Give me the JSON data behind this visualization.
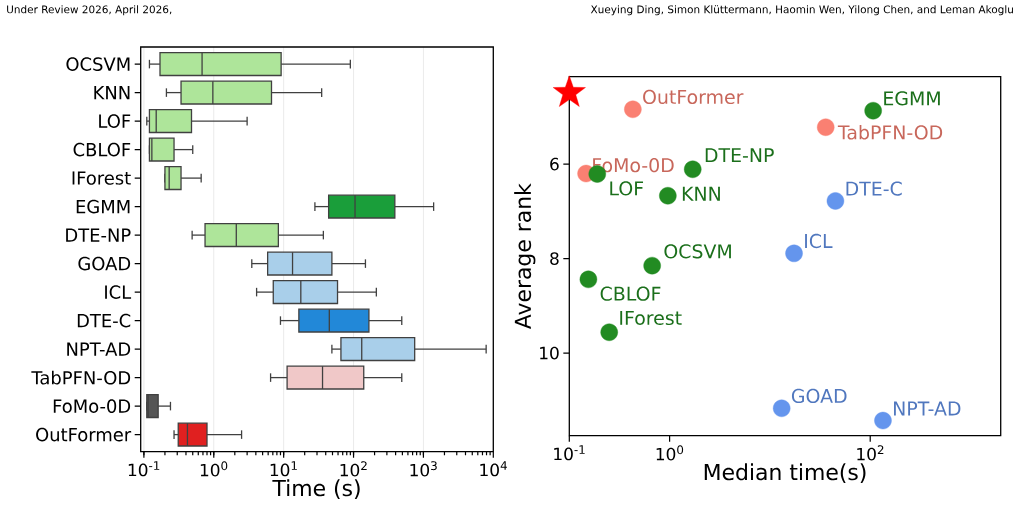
{
  "chart_data": [
    {
      "type": "box",
      "orientation": "horizontal",
      "xlabel": "Time (s)",
      "log": "x",
      "grid": "x",
      "categories": [
        "OCSVM",
        "KNN",
        "LOF",
        "CBLOF",
        "IForest",
        "EGMM",
        "DTE-NP",
        "GOAD",
        "ICL",
        "DTE-C",
        "NPT-AD",
        "TabPFN-OD",
        "FoMo-0D",
        "OutFormer"
      ],
      "colors": [
        "#aee59a",
        "#aee59a",
        "#aee59a",
        "#aee59a",
        "#aee59a",
        "#1a9e3a",
        "#aee59a",
        "#a9cfea",
        "#a9cfea",
        "#2288d8",
        "#a9cfea",
        "#f0c8c8",
        "#555555",
        "#e02020"
      ],
      "boxes": [
        {
          "low": 0.12,
          "q1": 0.17,
          "median": 0.68,
          "q3": 9.2,
          "high": 90
        },
        {
          "low": 0.21,
          "q1": 0.34,
          "median": 0.97,
          "q3": 6.7,
          "high": 35
        },
        {
          "low": 0.11,
          "q1": 0.12,
          "median": 0.15,
          "q3": 0.48,
          "high": 3.0
        },
        {
          "low": 0.12,
          "q1": 0.12,
          "median": 0.13,
          "q3": 0.27,
          "high": 0.5
        },
        {
          "low": 0.2,
          "q1": 0.2,
          "median": 0.23,
          "q3": 0.34,
          "high": 0.66
        },
        {
          "low": 28,
          "q1": 44,
          "median": 105,
          "q3": 390,
          "high": 1400
        },
        {
          "low": 0.49,
          "q1": 0.75,
          "median": 2.1,
          "q3": 8.4,
          "high": 37
        },
        {
          "low": 3.5,
          "q1": 5.9,
          "median": 13.4,
          "q3": 49,
          "high": 148
        },
        {
          "low": 4.1,
          "q1": 7.1,
          "median": 17.6,
          "q3": 59,
          "high": 212
        },
        {
          "low": 9.0,
          "q1": 16.5,
          "median": 45,
          "q3": 166,
          "high": 490
        },
        {
          "low": 49,
          "q1": 66,
          "median": 131,
          "q3": 750,
          "high": 7900
        },
        {
          "low": 6.5,
          "q1": 11.2,
          "median": 36,
          "q3": 140,
          "high": 490
        },
        {
          "low": 0.11,
          "q1": 0.11,
          "median": 0.115,
          "q3": 0.16,
          "high": 0.24
        },
        {
          "low": 0.27,
          "q1": 0.31,
          "median": 0.42,
          "q3": 0.8,
          "high": 2.5
        }
      ],
      "xlim": [
        0.09,
        10000
      ],
      "xticks": [
        {
          "value": 0.1,
          "label": "10$^{-1}$"
        },
        {
          "value": 1,
          "label": "10$^{0}$"
        },
        {
          "value": 10,
          "label": "10$^{1}$"
        },
        {
          "value": 100,
          "label": "10$^{2}$"
        },
        {
          "value": 1000,
          "label": "10$^{3}$"
        },
        {
          "value": 10000,
          "label": "10$^{4}$"
        }
      ],
      "annotations": [
        "Under Review 2026, April 2026,"
      ]
    },
    {
      "type": "scatter",
      "xlabel": "Median time(s)",
      "ylabel": "Average rank",
      "log": "x",
      "xlim": [
        0.1,
        2000
      ],
      "ylim": [
        11.75,
        4.15
      ],
      "xticks": [
        {
          "value": 0.1,
          "label": "10$^{-1}$"
        },
        {
          "value": 1,
          "label": "10$^{0}$"
        },
        {
          "value": 100,
          "label": "10$^{2}$"
        }
      ],
      "yticks": [
        6,
        8,
        10
      ],
      "series": [
        {
          "color": "#fa8072",
          "marker": "circle",
          "x": [
            0.43,
            36,
            0.147
          ],
          "values": [
            4.84,
            5.22,
            6.2
          ],
          "value_labels": [
            "OutFormer",
            "TabPFN-OD",
            "FoMo-0D"
          ]
        },
        {
          "color": "#6495ed",
          "marker": "circle",
          "x": [
            13.1,
            17.4,
            45,
            134
          ],
          "values": [
            11.17,
            7.89,
            6.78,
            11.43
          ],
          "value_labels": [
            "GOAD",
            "ICL",
            "DTE-C",
            "NPT-AD"
          ]
        },
        {
          "color": "#228b22",
          "marker": "circle",
          "x": [
            0.67,
            0.96,
            0.19,
            0.155,
            0.25,
            107,
            1.7
          ],
          "values": [
            8.15,
            6.67,
            6.21,
            8.44,
            9.56,
            4.87,
            6.11
          ],
          "value_labels": [
            "OCSVM",
            "KNN",
            "LOF",
            "CBLOF",
            "IForest",
            "EGMM",
            "DTE-NP"
          ]
        },
        {
          "color": "#ff0000",
          "marker": "star",
          "x": [
            0.1
          ],
          "values": [
            4.49
          ]
        }
      ],
      "annotations": [
        "Xueying Ding, Simon Klüttermann, Haomin Wen, Yilong Chen, and Leman Akoglu"
      ]
    }
  ]
}
